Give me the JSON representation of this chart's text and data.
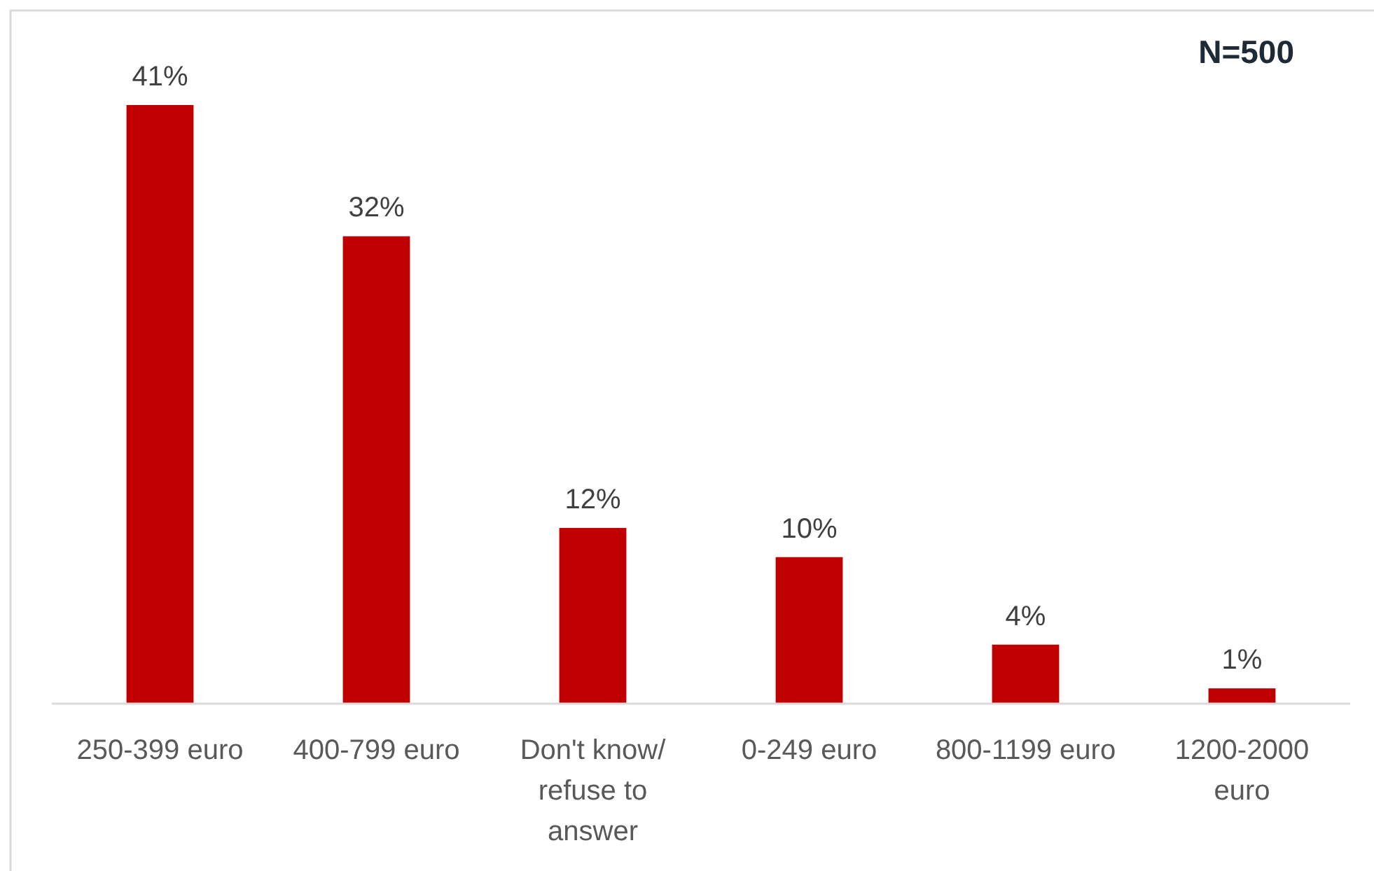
{
  "chart_data": {
    "type": "bar",
    "categories": [
      "250-399 euro",
      "400-799 euro",
      "Don't know/ refuse to answer",
      "0-249 euro",
      "800-1199 euro",
      "1200-2000 euro"
    ],
    "values": [
      41,
      32,
      12,
      10,
      4,
      1
    ],
    "color": "#c00000",
    "value_labels": [
      "41%",
      "32%",
      "12%",
      "10%",
      "4%",
      "1%"
    ],
    "annotations": [
      "N=500"
    ]
  }
}
